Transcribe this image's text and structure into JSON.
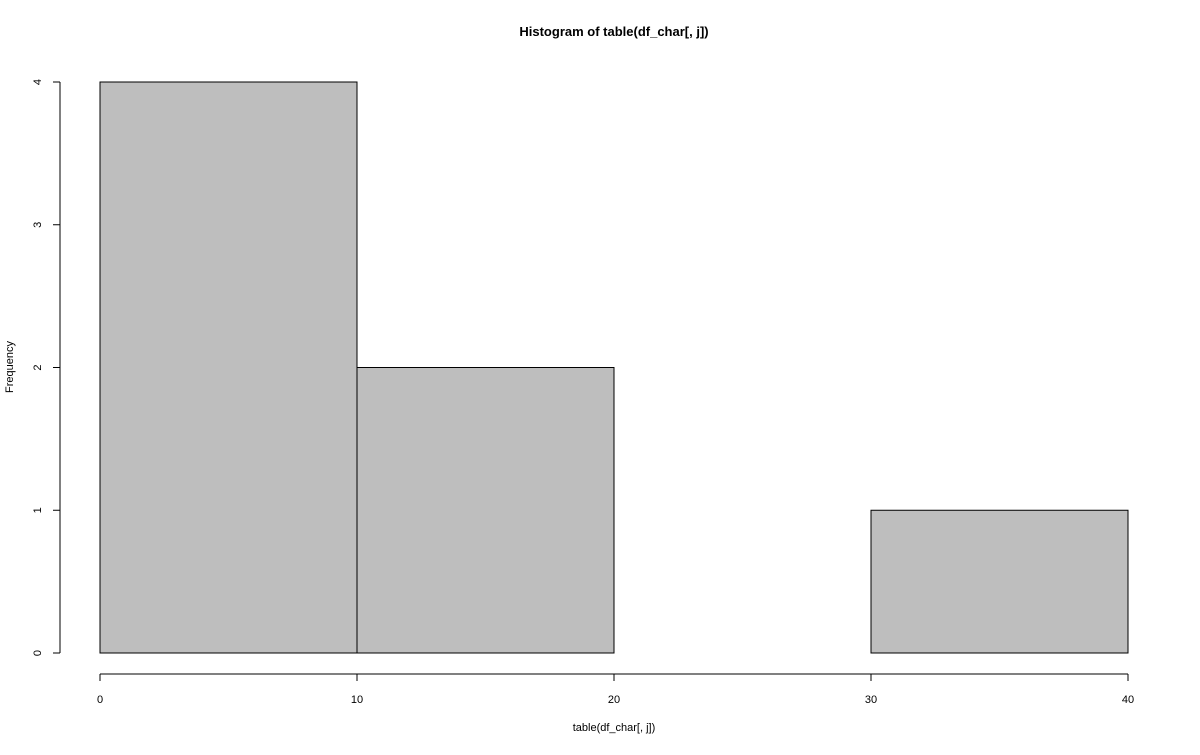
{
  "chart_data": {
    "type": "bar",
    "title": "Histogram of table(df_char[, j])",
    "xlabel": "table(df_char[, j])",
    "ylabel": "Frequency",
    "bins": [
      {
        "start": 0,
        "end": 10,
        "count": 4
      },
      {
        "start": 10,
        "end": 20,
        "count": 2
      },
      {
        "start": 20,
        "end": 30,
        "count": 0
      },
      {
        "start": 30,
        "end": 40,
        "count": 1
      }
    ],
    "x_ticks": [
      0,
      10,
      20,
      30,
      40
    ],
    "y_ticks": [
      0,
      1,
      2,
      3,
      4
    ],
    "xlim": [
      0,
      40
    ],
    "ylim": [
      0,
      4
    ],
    "grid": false,
    "bar_fill": "#bebebe",
    "bar_stroke": "#000000"
  }
}
